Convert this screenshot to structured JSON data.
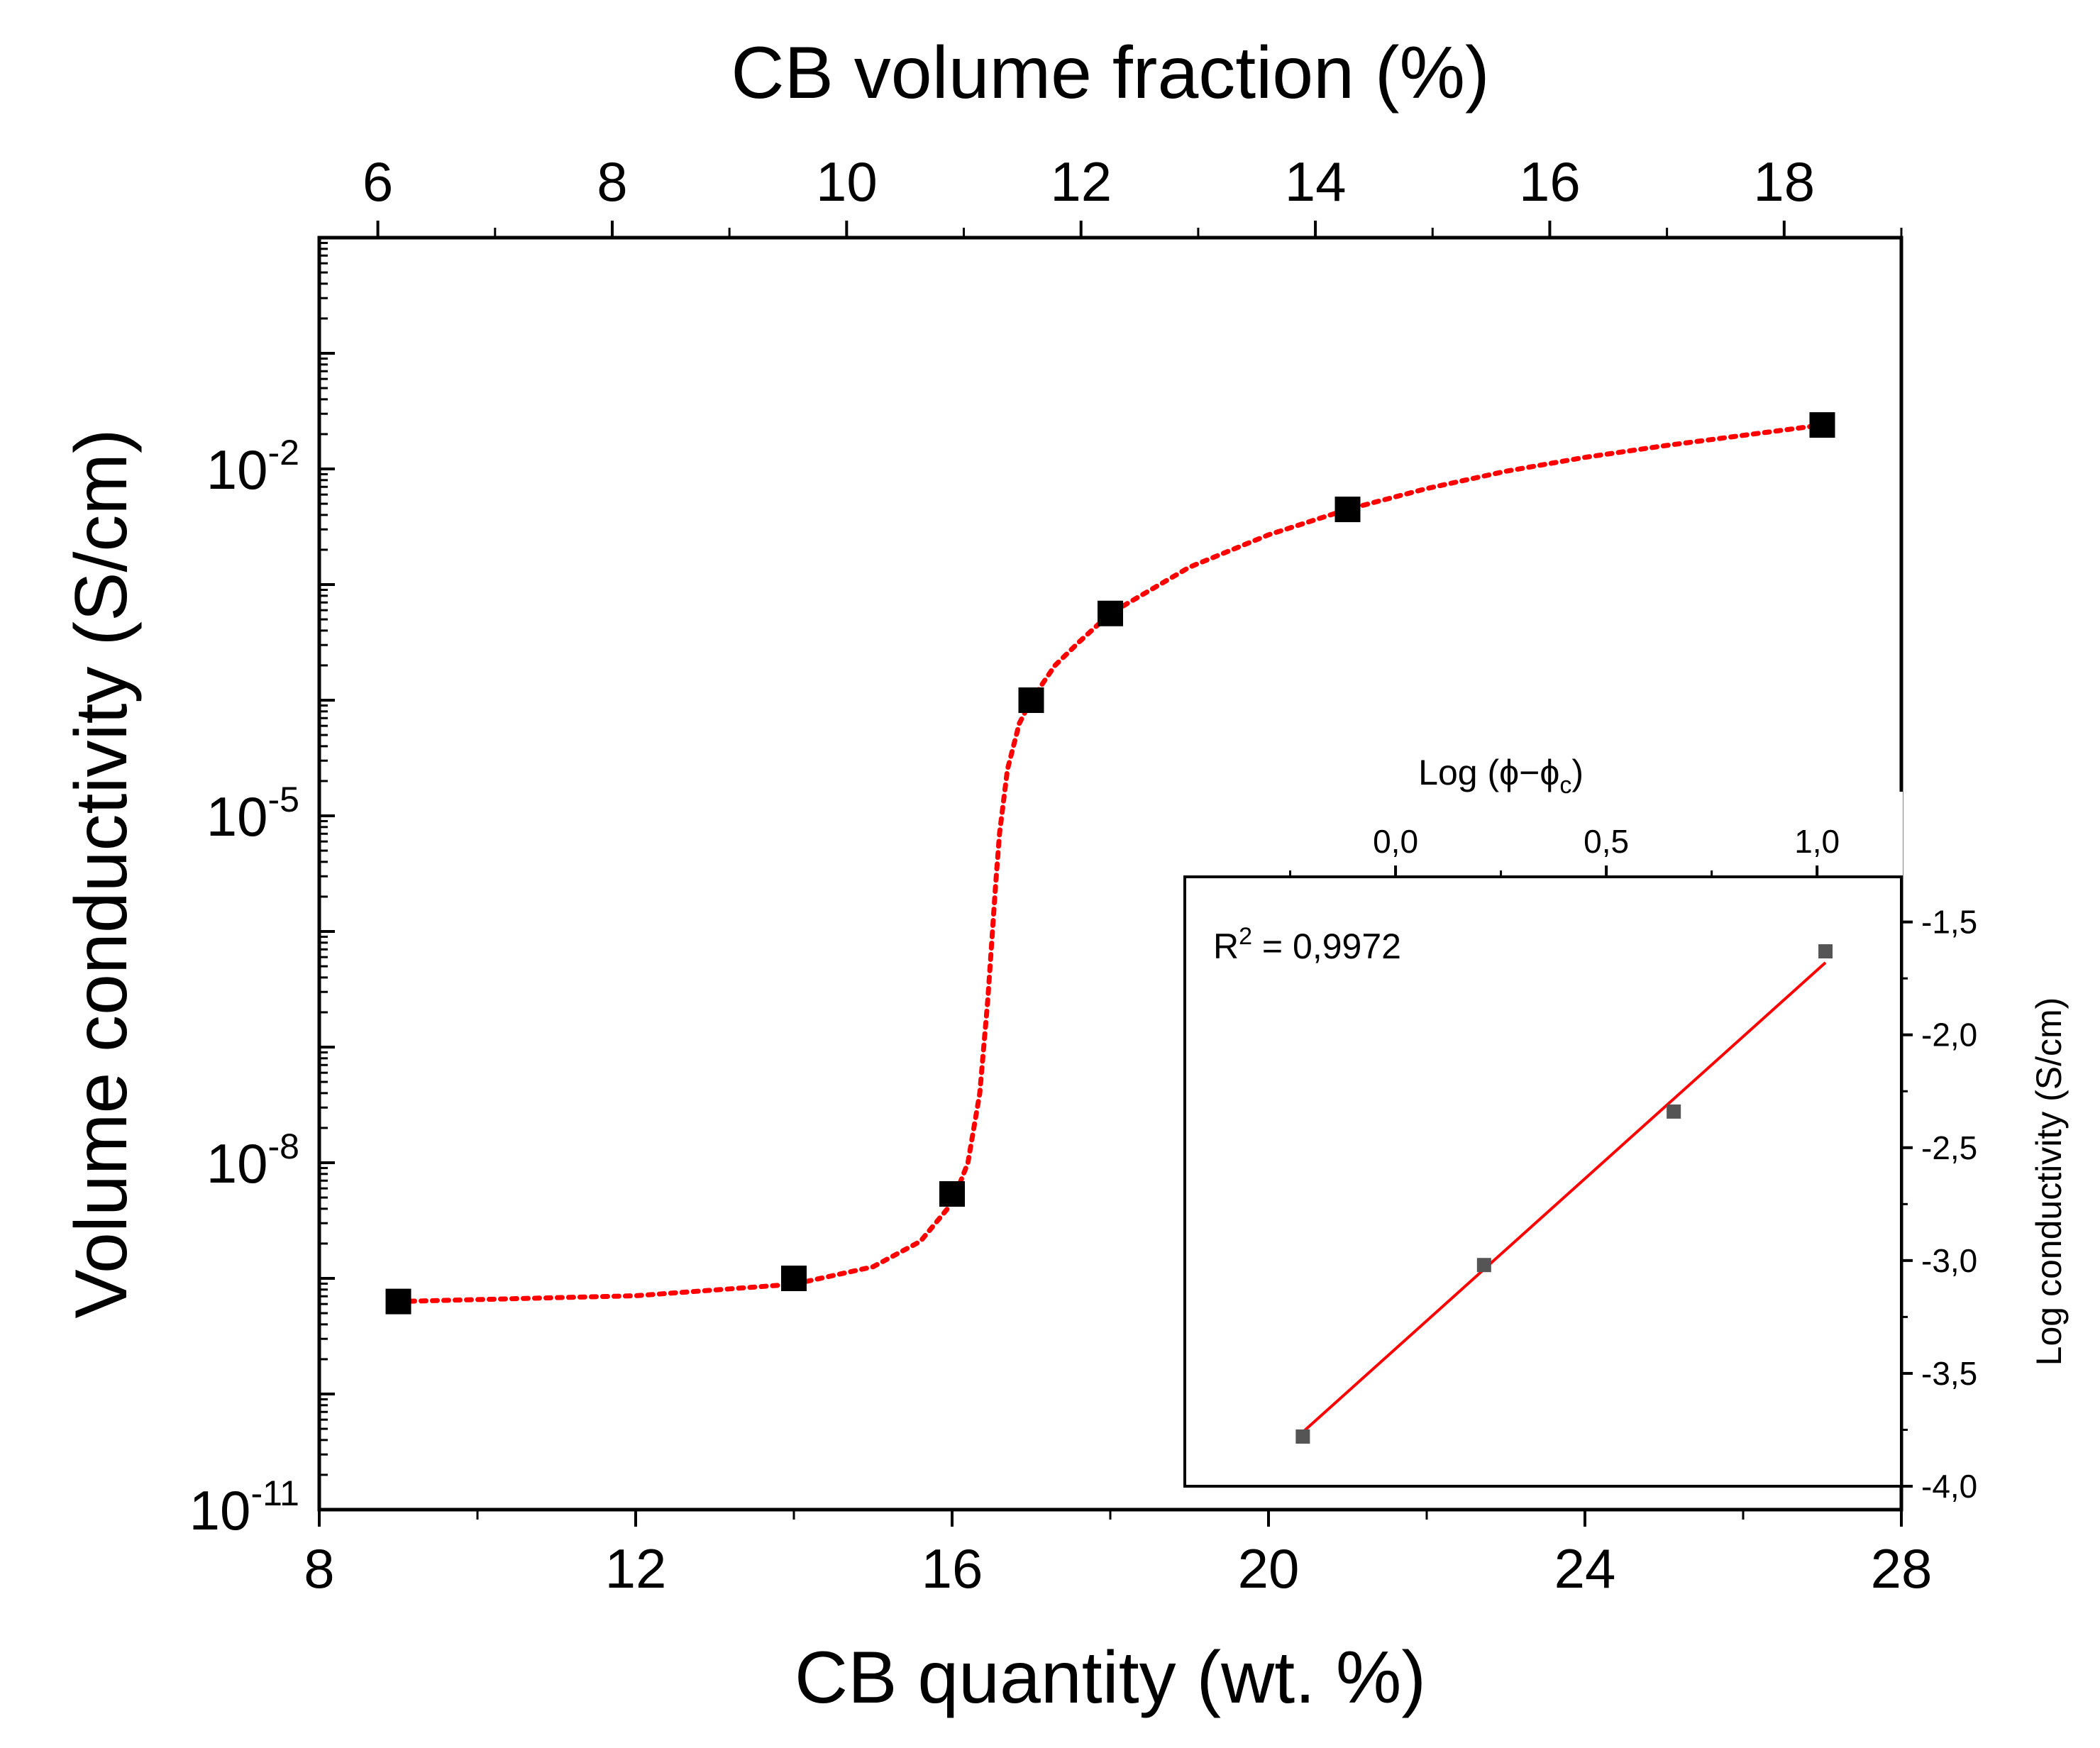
{
  "chart_data": [
    {
      "type": "scatter",
      "name": "main",
      "title": "",
      "xlabel": "CB quantity (wt. %)",
      "x_top_label": "CB volume fraction (%)",
      "ylabel": "Volume conductivity (S/cm)",
      "xlim": [
        8,
        28
      ],
      "x_ticks": [
        "8",
        "12",
        "16",
        "20",
        "24",
        "28"
      ],
      "x_top_lim": [
        5.5,
        19
      ],
      "x_top_ticks": [
        "6",
        "8",
        "10",
        "12",
        "14",
        "16",
        "18"
      ],
      "y_scale": "log",
      "ylim_exp": [
        -11,
        0
      ],
      "y_ticks": [
        {
          "base": "10",
          "exp": "-11"
        },
        {
          "base": "10",
          "exp": "-8"
        },
        {
          "base": "10",
          "exp": "-5"
        },
        {
          "base": "10",
          "exp": "-2"
        }
      ],
      "series": [
        {
          "name": "measured",
          "marker": "square",
          "color": "#000000",
          "x": [
            9,
            14,
            16,
            17,
            18,
            21,
            27
          ],
          "log10_y": [
            -9.2,
            -9.0,
            -8.27,
            -4.0,
            -3.25,
            -2.35,
            -1.62
          ]
        },
        {
          "name": "fit",
          "style": "dotted",
          "color": "#ff0000",
          "x": [
            9,
            12,
            14,
            15,
            15.6,
            16,
            16.2,
            16.35,
            16.45,
            16.5,
            16.55,
            16.6,
            16.7,
            16.85,
            17,
            17.3,
            17.6,
            18,
            18.5,
            19,
            20,
            21,
            22,
            23,
            24,
            25,
            26,
            27
          ],
          "log10_y": [
            -9.2,
            -9.15,
            -9.05,
            -8.9,
            -8.68,
            -8.35,
            -8.0,
            -7.4,
            -6.6,
            -6.1,
            -5.6,
            -5.15,
            -4.6,
            -4.2,
            -4.0,
            -3.7,
            -3.5,
            -3.25,
            -3.05,
            -2.85,
            -2.57,
            -2.35,
            -2.17,
            -2.02,
            -1.9,
            -1.8,
            -1.71,
            -1.62
          ]
        }
      ]
    },
    {
      "type": "scatter",
      "name": "inset",
      "title": "",
      "xlabel_parts": {
        "prefix": "Log (",
        "phi": "ϕ",
        "dash": "−",
        "sub": "c",
        "suffix": ")"
      },
      "ylabel": "Log conductivity (S/cm)",
      "xlim": [
        -0.5,
        1.2
      ],
      "x_ticks": [
        {
          "value": 0.0,
          "label": "0,0"
        },
        {
          "value": 0.5,
          "label": "0,5"
        },
        {
          "value": 1.0,
          "label": "1,0"
        }
      ],
      "ylim": [
        -4.0,
        -1.3
      ],
      "y_ticks": [
        {
          "value": -1.5,
          "label": "-1,5"
        },
        {
          "value": -2.0,
          "label": "-2,0"
        },
        {
          "value": -2.5,
          "label": "-2,5"
        },
        {
          "value": -3.0,
          "label": "-3,0"
        },
        {
          "value": -3.5,
          "label": "-3,5"
        },
        {
          "value": -4.0,
          "label": "-4,0"
        }
      ],
      "annotation": {
        "prefix": "R",
        "sup": "2",
        "suffix": " = 0,9972"
      },
      "series": [
        {
          "name": "points",
          "marker": "square",
          "color": "#555555",
          "x": [
            -0.22,
            0.21,
            0.66,
            1.02
          ],
          "y": [
            -3.78,
            -3.02,
            -2.34,
            -1.63
          ]
        },
        {
          "name": "linear fit",
          "color": "#ff0000",
          "x": [
            -0.22,
            1.02
          ],
          "y": [
            -3.76,
            -1.68
          ]
        }
      ]
    }
  ]
}
